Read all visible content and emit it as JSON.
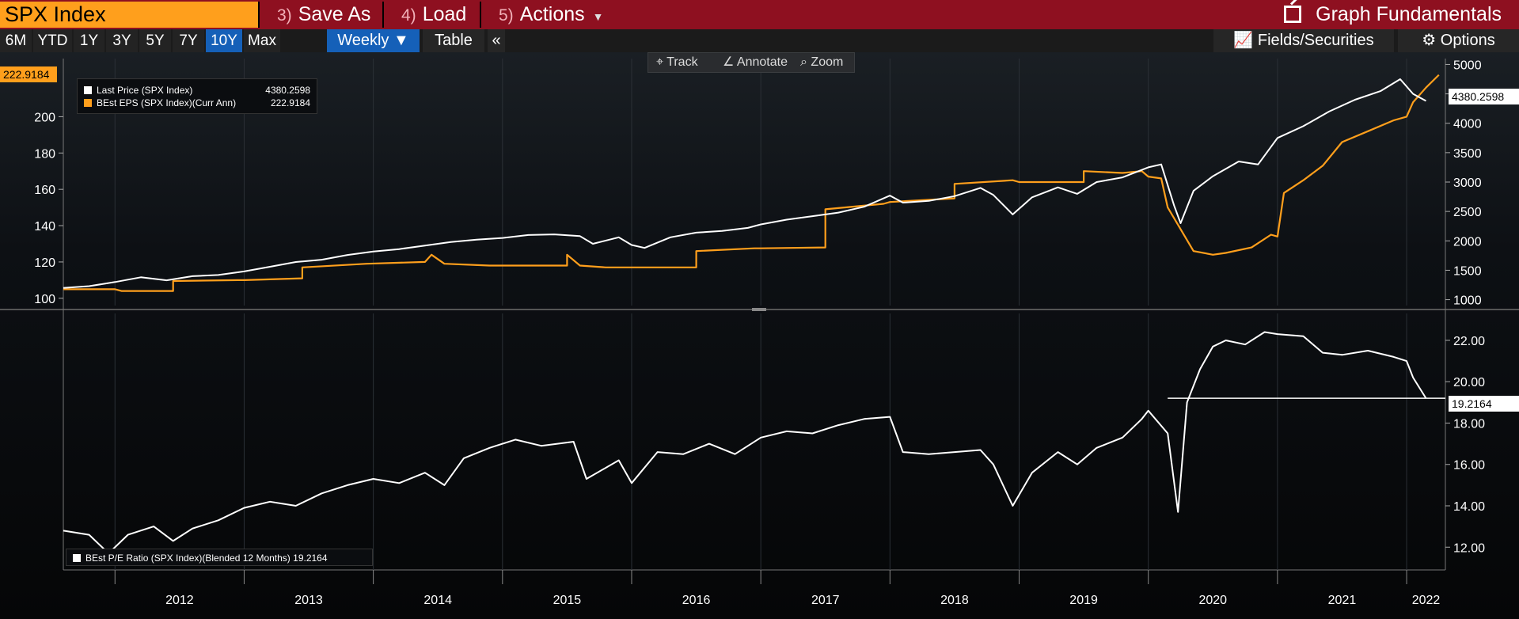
{
  "topbar": {
    "ticker": "SPX Index",
    "save_as": {
      "num": "3)",
      "label": "Save As"
    },
    "load": {
      "num": "4)",
      "label": "Load"
    },
    "actions": {
      "num": "5)",
      "label": "Actions"
    },
    "graph_title": "Graph Fundamentals"
  },
  "toolbar": {
    "ranges": [
      "6M",
      "YTD",
      "1Y",
      "3Y",
      "5Y",
      "7Y",
      "10Y",
      "Max"
    ],
    "active_range": "10Y",
    "frequency": "Weekly ▼",
    "table_label": "Table",
    "collapse_label": "«",
    "fields_label": "Fields/Securities",
    "options_label": "Options"
  },
  "chart_tools": {
    "track": "Track",
    "annotate": "Annotate",
    "zoom": "Zoom"
  },
  "colors": {
    "price": "#ffffff",
    "eps": "#ff9f1c",
    "pe": "#ffffff",
    "accent": "#1560b8",
    "header": "#8e1020"
  },
  "chart_data": [
    {
      "type": "line",
      "panel": "top",
      "x_labels": [
        "2012",
        "2013",
        "2014",
        "2015",
        "2016",
        "2017",
        "2018",
        "2019",
        "2020",
        "2021",
        "2022"
      ],
      "y_left_ticks": [
        100,
        120,
        140,
        160,
        180,
        200
      ],
      "y_right_ticks": [
        1000,
        1500,
        2000,
        2500,
        3000,
        3500,
        4000,
        4500,
        5000
      ],
      "series": [
        {
          "name": "Last Price (SPX Index)",
          "axis": "right",
          "last_value": "4380.2598",
          "points": [
            [
              2011.6,
              1200
            ],
            [
              2011.8,
              1230
            ],
            [
              2012.0,
              1300
            ],
            [
              2012.2,
              1380
            ],
            [
              2012.4,
              1330
            ],
            [
              2012.6,
              1400
            ],
            [
              2012.8,
              1420
            ],
            [
              2013.0,
              1480
            ],
            [
              2013.2,
              1560
            ],
            [
              2013.4,
              1640
            ],
            [
              2013.6,
              1680
            ],
            [
              2013.8,
              1760
            ],
            [
              2014.0,
              1820
            ],
            [
              2014.2,
              1860
            ],
            [
              2014.4,
              1920
            ],
            [
              2014.6,
              1980
            ],
            [
              2014.8,
              2020
            ],
            [
              2015.0,
              2050
            ],
            [
              2015.2,
              2100
            ],
            [
              2015.4,
              2110
            ],
            [
              2015.6,
              2080
            ],
            [
              2015.7,
              1950
            ],
            [
              2015.9,
              2060
            ],
            [
              2016.0,
              1930
            ],
            [
              2016.1,
              1880
            ],
            [
              2016.3,
              2060
            ],
            [
              2016.5,
              2140
            ],
            [
              2016.7,
              2170
            ],
            [
              2016.9,
              2220
            ],
            [
              2017.0,
              2280
            ],
            [
              2017.2,
              2360
            ],
            [
              2017.4,
              2420
            ],
            [
              2017.6,
              2480
            ],
            [
              2017.8,
              2580
            ],
            [
              2018.0,
              2770
            ],
            [
              2018.1,
              2650
            ],
            [
              2018.3,
              2680
            ],
            [
              2018.5,
              2760
            ],
            [
              2018.7,
              2900
            ],
            [
              2018.8,
              2780
            ],
            [
              2018.95,
              2450
            ],
            [
              2019.1,
              2740
            ],
            [
              2019.3,
              2910
            ],
            [
              2019.45,
              2800
            ],
            [
              2019.6,
              3000
            ],
            [
              2019.8,
              3080
            ],
            [
              2020.0,
              3250
            ],
            [
              2020.1,
              3300
            ],
            [
              2020.2,
              2600
            ],
            [
              2020.25,
              2300
            ],
            [
              2020.35,
              2850
            ],
            [
              2020.5,
              3100
            ],
            [
              2020.7,
              3350
            ],
            [
              2020.85,
              3300
            ],
            [
              2021.0,
              3750
            ],
            [
              2021.2,
              3950
            ],
            [
              2021.4,
              4200
            ],
            [
              2021.6,
              4400
            ],
            [
              2021.8,
              4550
            ],
            [
              2021.95,
              4750
            ],
            [
              2022.05,
              4500
            ],
            [
              2022.15,
              4380
            ]
          ]
        },
        {
          "name": "BEst EPS (SPX Index)(Curr Ann)",
          "axis": "left",
          "last_value": "222.9184",
          "points": [
            [
              2011.6,
              105
            ],
            [
              2012.0,
              105
            ],
            [
              2012.05,
              104
            ],
            [
              2012.45,
              104
            ],
            [
              2012.45,
              109.5
            ],
            [
              2012.95,
              110
            ],
            [
              2013.0,
              110
            ],
            [
              2013.45,
              111
            ],
            [
              2013.45,
              117
            ],
            [
              2013.95,
              119
            ],
            [
              2014.4,
              120
            ],
            [
              2014.45,
              124
            ],
            [
              2014.55,
              119
            ],
            [
              2014.9,
              118
            ],
            [
              2015.0,
              118
            ],
            [
              2015.5,
              118
            ],
            [
              2015.5,
              124
            ],
            [
              2015.6,
              118
            ],
            [
              2015.8,
              117
            ],
            [
              2016.0,
              117
            ],
            [
              2016.5,
              117
            ],
            [
              2016.5,
              126
            ],
            [
              2016.95,
              127.5
            ],
            [
              2017.0,
              127.5
            ],
            [
              2017.5,
              128
            ],
            [
              2017.5,
              149
            ],
            [
              2017.95,
              152
            ],
            [
              2018.0,
              153
            ],
            [
              2018.5,
              155
            ],
            [
              2018.5,
              163
            ],
            [
              2018.95,
              165
            ],
            [
              2019.0,
              164
            ],
            [
              2019.5,
              164
            ],
            [
              2019.5,
              170
            ],
            [
              2019.8,
              169
            ],
            [
              2019.95,
              170
            ],
            [
              2020.0,
              167
            ],
            [
              2020.1,
              166
            ],
            [
              2020.15,
              150
            ],
            [
              2020.25,
              138
            ],
            [
              2020.35,
              126
            ],
            [
              2020.5,
              124
            ],
            [
              2020.6,
              125
            ],
            [
              2020.8,
              128
            ],
            [
              2020.95,
              135
            ],
            [
              2021.0,
              134
            ],
            [
              2021.05,
              158
            ],
            [
              2021.2,
              165
            ],
            [
              2021.35,
              173
            ],
            [
              2021.5,
              186
            ],
            [
              2021.7,
              192
            ],
            [
              2021.9,
              198
            ],
            [
              2022.0,
              200
            ],
            [
              2022.05,
              208
            ],
            [
              2022.15,
              216
            ],
            [
              2022.25,
              223
            ]
          ]
        }
      ]
    },
    {
      "type": "line",
      "panel": "bottom",
      "x_labels": [
        "2012",
        "2013",
        "2014",
        "2015",
        "2016",
        "2017",
        "2018",
        "2019",
        "2020",
        "2021",
        "2022"
      ],
      "y_right_ticks": [
        12,
        14,
        16,
        18,
        20,
        22
      ],
      "y_tick_labels": [
        "12.00",
        "14.00",
        "16.00",
        "18.00",
        "20.00",
        "22.00"
      ],
      "series": [
        {
          "name": "BEst P/E Ratio (SPX Index)(Blended 12 Months)",
          "axis": "right",
          "last_value": "19.2164",
          "points": [
            [
              2011.6,
              12.8
            ],
            [
              2011.8,
              12.6
            ],
            [
              2011.95,
              11.7
            ],
            [
              2012.1,
              12.6
            ],
            [
              2012.3,
              13.0
            ],
            [
              2012.45,
              12.3
            ],
            [
              2012.6,
              12.9
            ],
            [
              2012.8,
              13.3
            ],
            [
              2013.0,
              13.9
            ],
            [
              2013.2,
              14.2
            ],
            [
              2013.4,
              14.0
            ],
            [
              2013.6,
              14.6
            ],
            [
              2013.8,
              15.0
            ],
            [
              2014.0,
              15.3
            ],
            [
              2014.2,
              15.1
            ],
            [
              2014.4,
              15.6
            ],
            [
              2014.55,
              15.0
            ],
            [
              2014.7,
              16.3
            ],
            [
              2014.9,
              16.8
            ],
            [
              2015.1,
              17.2
            ],
            [
              2015.3,
              16.9
            ],
            [
              2015.55,
              17.1
            ],
            [
              2015.65,
              15.3
            ],
            [
              2015.9,
              16.2
            ],
            [
              2016.0,
              15.1
            ],
            [
              2016.2,
              16.6
            ],
            [
              2016.4,
              16.5
            ],
            [
              2016.6,
              17.0
            ],
            [
              2016.8,
              16.5
            ],
            [
              2017.0,
              17.3
            ],
            [
              2017.2,
              17.6
            ],
            [
              2017.4,
              17.5
            ],
            [
              2017.6,
              17.9
            ],
            [
              2017.8,
              18.2
            ],
            [
              2018.0,
              18.3
            ],
            [
              2018.1,
              16.6
            ],
            [
              2018.3,
              16.5
            ],
            [
              2018.5,
              16.6
            ],
            [
              2018.7,
              16.7
            ],
            [
              2018.8,
              16.0
            ],
            [
              2018.95,
              14.0
            ],
            [
              2019.1,
              15.6
            ],
            [
              2019.3,
              16.6
            ],
            [
              2019.45,
              16.0
            ],
            [
              2019.6,
              16.8
            ],
            [
              2019.8,
              17.3
            ],
            [
              2019.95,
              18.2
            ],
            [
              2020.0,
              18.6
            ],
            [
              2020.15,
              17.5
            ],
            [
              2020.23,
              13.7
            ],
            [
              2020.3,
              19.0
            ],
            [
              2020.4,
              20.6
            ],
            [
              2020.5,
              21.7
            ],
            [
              2020.6,
              22.0
            ],
            [
              2020.75,
              21.8
            ],
            [
              2020.9,
              22.4
            ],
            [
              2021.0,
              22.3
            ],
            [
              2021.2,
              22.2
            ],
            [
              2021.35,
              21.4
            ],
            [
              2021.5,
              21.3
            ],
            [
              2021.7,
              21.5
            ],
            [
              2021.9,
              21.2
            ],
            [
              2022.0,
              21.0
            ],
            [
              2022.05,
              20.2
            ],
            [
              2022.15,
              19.2
            ]
          ]
        }
      ]
    }
  ]
}
